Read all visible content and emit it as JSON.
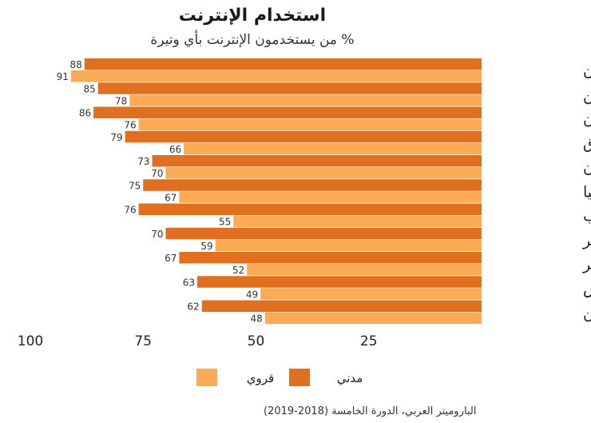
{
  "chart_data": {
    "type": "bar",
    "orientation": "horizontal",
    "title": "استخدام الإنترنت",
    "subtitle": "% من يستخدمون الإنترنت بأي وتيرة",
    "categories": [
      "لبنان",
      "فلسطين",
      "الأردن",
      "العراق",
      "السودان",
      "ليبيا",
      "المغرب",
      "الجزائر",
      "مصر",
      "تونس",
      "اليمن"
    ],
    "series": [
      {
        "name": "مدني",
        "color": "#e07020",
        "values": [
          88,
          85,
          86,
          79,
          73,
          75,
          76,
          70,
          67,
          63,
          62
        ]
      },
      {
        "name": "قروي",
        "color": "#fbaa55",
        "values": [
          91,
          78,
          76,
          66,
          70,
          67,
          55,
          59,
          52,
          49,
          48
        ]
      }
    ],
    "x_ticks": [
      100,
      75,
      50,
      25
    ],
    "xlim": [
      0,
      100
    ],
    "x_axis_reversed": true,
    "grid": false,
    "legend_position": "bottom",
    "source": "الباروميتر العربي، الدورة الخامسة (2018-2019)"
  }
}
